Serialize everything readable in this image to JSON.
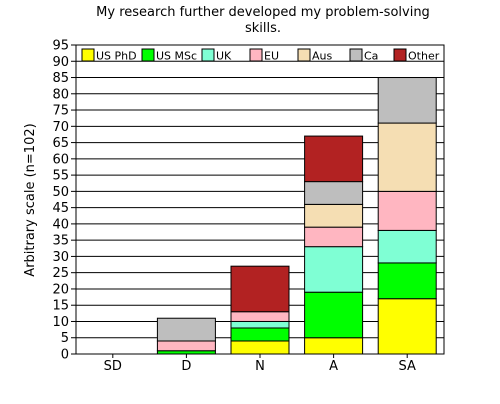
{
  "chart_data": {
    "type": "bar",
    "stacked": true,
    "title_lines": [
      "My research further developed my problem-solving",
      "skills."
    ],
    "xlabel": "",
    "ylabel": "Arbitrary scale (n=102)",
    "ylim": [
      0,
      95
    ],
    "ytick_step": 5,
    "grid": true,
    "legend_position": "top",
    "categories": [
      "SD",
      "D",
      "N",
      "A",
      "SA"
    ],
    "series": [
      {
        "name": "US PhD",
        "color": "#ffff00",
        "values": [
          0,
          0,
          4,
          5,
          17
        ]
      },
      {
        "name": "US MSc",
        "color": "#00ff00",
        "values": [
          0,
          1,
          4,
          14,
          11
        ]
      },
      {
        "name": "UK",
        "color": "#7fffd4",
        "values": [
          0,
          0,
          2,
          14,
          10
        ]
      },
      {
        "name": "EU",
        "color": "#ffb6c1",
        "values": [
          0,
          3,
          3,
          6,
          12
        ]
      },
      {
        "name": "Aus",
        "color": "#f5deb3",
        "values": [
          0,
          0,
          0,
          7,
          21
        ]
      },
      {
        "name": "Ca",
        "color": "#bebebe",
        "values": [
          0,
          7,
          0,
          7,
          14
        ]
      },
      {
        "name": "Other",
        "color": "#b22222",
        "values": [
          0,
          0,
          14,
          14,
          0
        ]
      }
    ]
  }
}
